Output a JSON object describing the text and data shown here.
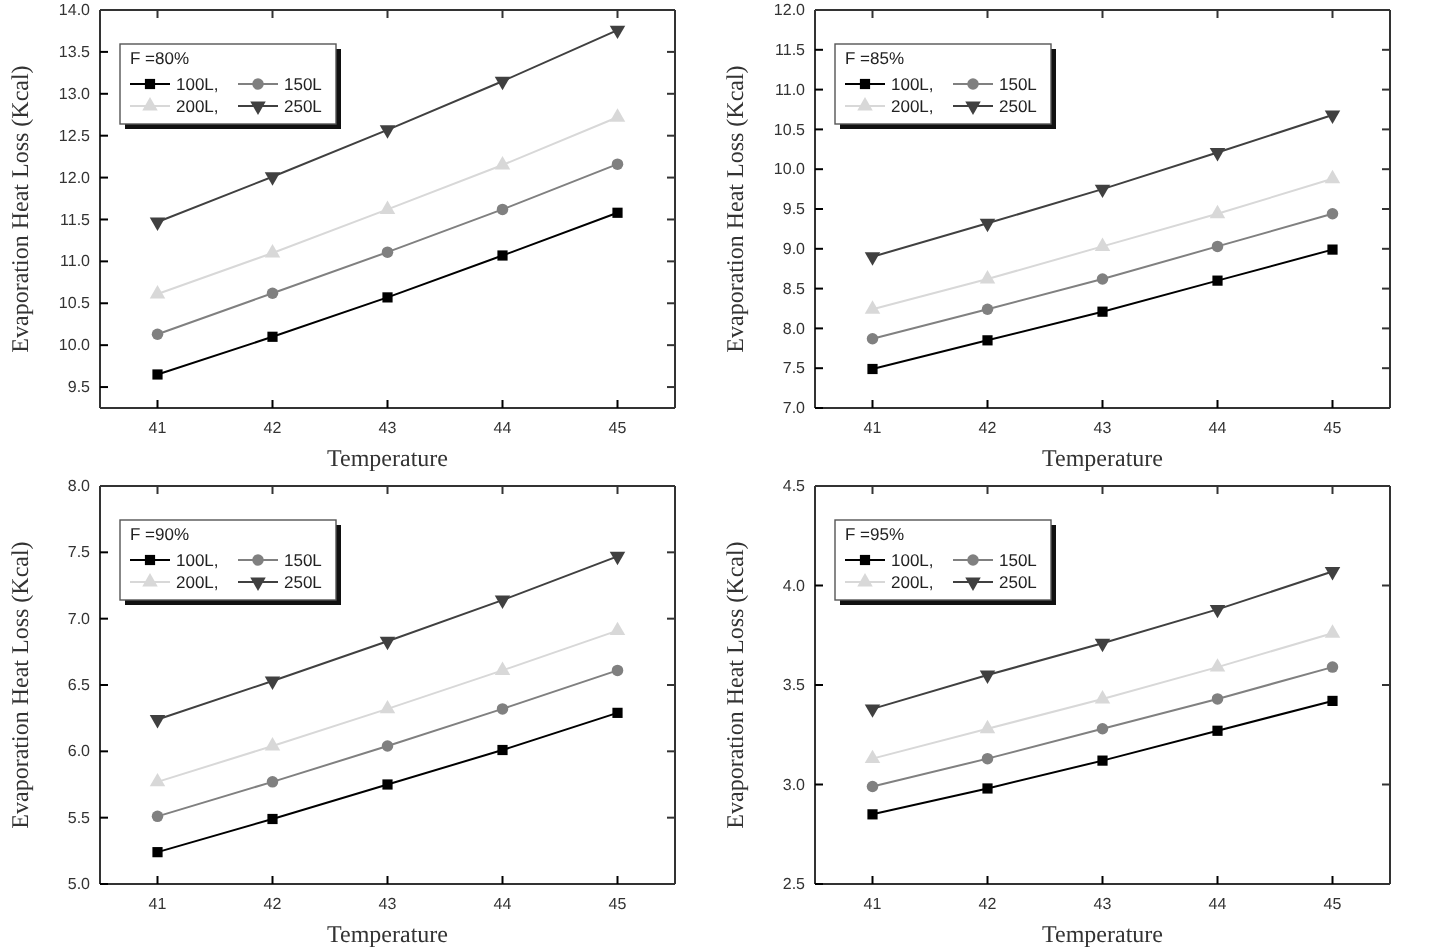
{
  "chart_data": [
    {
      "type": "line",
      "xlabel": "Temperature",
      "ylabel": "Evaporation Heat Loss (Kcal)",
      "legend_title": "F =80%",
      "legend": "top left",
      "line_style": "solid",
      "x": [
        41,
        42,
        43,
        44,
        45
      ],
      "xlim": [
        40.5,
        45.5
      ],
      "xticks": [
        41,
        42,
        43,
        44,
        45
      ],
      "ylim": [
        9.25,
        14.0
      ],
      "yticks": [
        {
          "value": 9.5,
          "label": "9.5"
        },
        {
          "value": 10,
          "label": "10.0"
        },
        {
          "value": 10.5,
          "label": "10.5"
        },
        {
          "value": 11,
          "label": "11.0"
        },
        {
          "value": 11.5,
          "label": "11.5"
        },
        {
          "value": 12,
          "label": "12.0"
        },
        {
          "value": 12.5,
          "label": "12.5"
        },
        {
          "value": 13,
          "label": "13.0"
        },
        {
          "value": 13.5,
          "label": "13.5"
        },
        {
          "value": 14,
          "label": "14.0"
        }
      ],
      "series": [
        {
          "name": "100L,",
          "color": "#000000",
          "marker": "square",
          "values": [
            9.65,
            10.1,
            10.57,
            11.07,
            11.58
          ]
        },
        {
          "name": "150L",
          "color": "#808080",
          "marker": "circle",
          "values": [
            10.13,
            10.62,
            11.11,
            11.62,
            12.16
          ]
        },
        {
          "name": "200L,",
          "color": "#d8d8d8",
          "marker": "triangle",
          "values": [
            10.61,
            11.1,
            11.62,
            12.15,
            12.72
          ]
        },
        {
          "name": "250L",
          "color": "#404040",
          "marker": "triangle-down",
          "values": [
            11.47,
            12.01,
            12.57,
            13.15,
            13.76
          ]
        }
      ]
    },
    {
      "type": "line",
      "xlabel": "Temperature",
      "ylabel": "Evaporation Heat Loss (Kcal)",
      "legend_title": "F =85%",
      "legend": "top left",
      "line_style": "solid",
      "x": [
        41,
        42,
        43,
        44,
        45
      ],
      "xlim": [
        40.5,
        45.5
      ],
      "xticks": [
        41,
        42,
        43,
        44,
        45
      ],
      "ylim": [
        7.0,
        12.0
      ],
      "yticks": [
        {
          "value": 7,
          "label": "7.0"
        },
        {
          "value": 7.5,
          "label": "7.5"
        },
        {
          "value": 8,
          "label": "8.0"
        },
        {
          "value": 8.5,
          "label": "8.5"
        },
        {
          "value": 9,
          "label": "9.0"
        },
        {
          "value": 9.5,
          "label": "9.5"
        },
        {
          "value": 10,
          "label": "10.0"
        },
        {
          "value": 10.5,
          "label": "10.5"
        },
        {
          "value": 11,
          "label": "11.0"
        },
        {
          "value": 11.5,
          "label": "11.5"
        },
        {
          "value": 12,
          "label": "12.0"
        }
      ],
      "series": [
        {
          "name": "100L,",
          "color": "#000000",
          "marker": "square",
          "values": [
            7.49,
            7.85,
            8.21,
            8.6,
            8.99
          ]
        },
        {
          "name": "150L",
          "color": "#808080",
          "marker": "circle",
          "values": [
            7.87,
            8.24,
            8.62,
            9.03,
            9.44
          ]
        },
        {
          "name": "200L,",
          "color": "#d8d8d8",
          "marker": "triangle",
          "values": [
            8.24,
            8.62,
            9.03,
            9.44,
            9.88
          ]
        },
        {
          "name": "250L",
          "color": "#404040",
          "marker": "triangle-down",
          "values": [
            8.9,
            9.32,
            9.75,
            10.21,
            10.68
          ]
        }
      ]
    },
    {
      "type": "line",
      "xlabel": "Temperature",
      "ylabel": "Evaporation Heat Loss (Kcal)",
      "legend_title": "F =90%",
      "legend": "top left",
      "line_style": "solid",
      "x": [
        41,
        42,
        43,
        44,
        45
      ],
      "xlim": [
        40.5,
        45.5
      ],
      "xticks": [
        41,
        42,
        43,
        44,
        45
      ],
      "ylim": [
        5.0,
        8.0
      ],
      "yticks": [
        {
          "value": 5,
          "label": "5.0"
        },
        {
          "value": 5.5,
          "label": "5.5"
        },
        {
          "value": 6,
          "label": "6.0"
        },
        {
          "value": 6.5,
          "label": "6.5"
        },
        {
          "value": 7,
          "label": "7.0"
        },
        {
          "value": 7.5,
          "label": "7.5"
        },
        {
          "value": 8,
          "label": "8.0"
        }
      ],
      "series": [
        {
          "name": "100L,",
          "color": "#000000",
          "marker": "square",
          "values": [
            5.24,
            5.49,
            5.75,
            6.01,
            6.29
          ]
        },
        {
          "name": "150L",
          "color": "#808080",
          "marker": "circle",
          "values": [
            5.51,
            5.77,
            6.04,
            6.32,
            6.61
          ]
        },
        {
          "name": "200L,",
          "color": "#d8d8d8",
          "marker": "triangle",
          "values": [
            5.77,
            6.04,
            6.32,
            6.61,
            6.91
          ]
        },
        {
          "name": "250L",
          "color": "#404040",
          "marker": "triangle-down",
          "values": [
            6.24,
            6.53,
            6.83,
            7.14,
            7.47
          ]
        }
      ]
    },
    {
      "type": "line",
      "xlabel": "Temperature",
      "ylabel": "Evaporation Heat Loss (Kcal)",
      "legend_title": "F =95%",
      "legend": "top left",
      "line_style": "solid",
      "x": [
        41,
        42,
        43,
        44,
        45
      ],
      "xlim": [
        40.5,
        45.5
      ],
      "xticks": [
        41,
        42,
        43,
        44,
        45
      ],
      "ylim": [
        2.5,
        4.5
      ],
      "yticks": [
        {
          "value": 2.5,
          "label": "2.5"
        },
        {
          "value": 3,
          "label": "3.0"
        },
        {
          "value": 3.5,
          "label": "3.5"
        },
        {
          "value": 4,
          "label": "4.0"
        },
        {
          "value": 4.5,
          "label": "4.5"
        }
      ],
      "series": [
        {
          "name": "100L,",
          "color": "#000000",
          "marker": "square",
          "values": [
            2.85,
            2.98,
            3.12,
            3.27,
            3.42
          ]
        },
        {
          "name": "150L",
          "color": "#808080",
          "marker": "circle",
          "values": [
            2.99,
            3.13,
            3.28,
            3.43,
            3.59
          ]
        },
        {
          "name": "200L,",
          "color": "#d8d8d8",
          "marker": "triangle",
          "values": [
            3.13,
            3.28,
            3.43,
            3.59,
            3.76
          ]
        },
        {
          "name": "250L",
          "color": "#404040",
          "marker": "triangle-down",
          "values": [
            3.38,
            3.55,
            3.71,
            3.88,
            4.07
          ]
        }
      ]
    }
  ]
}
